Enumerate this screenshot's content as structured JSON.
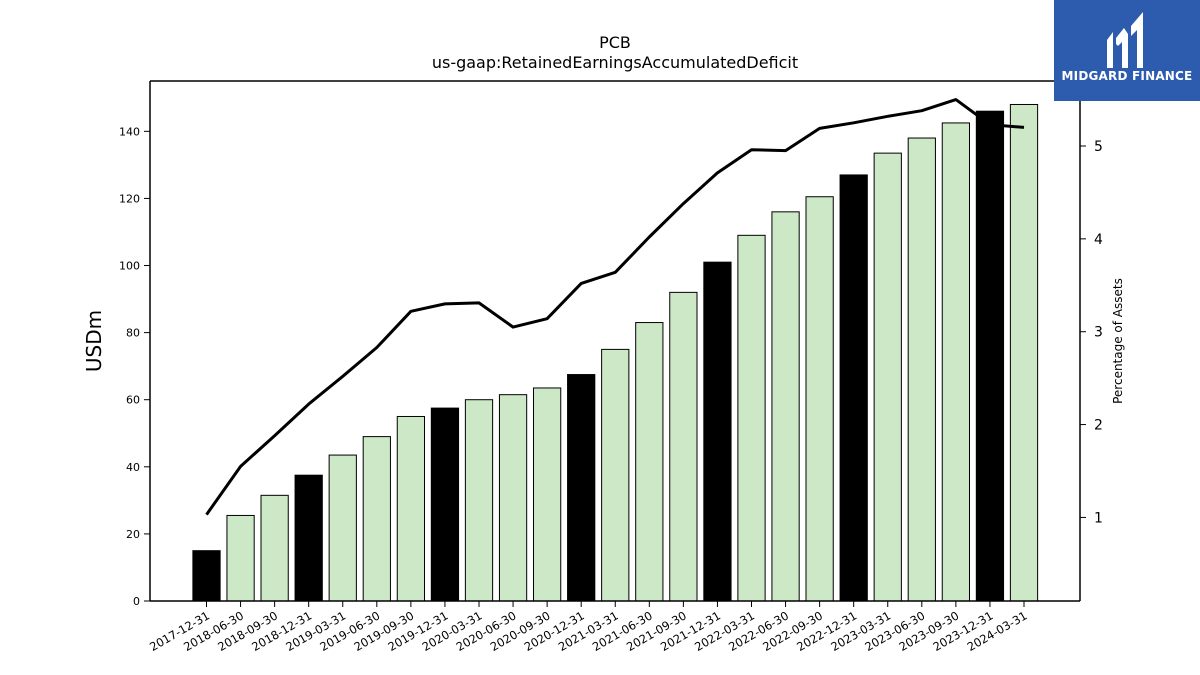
{
  "chart_data": {
    "type": "bar",
    "title": "PCB",
    "subtitle": "us-gaap:RetainedEarningsAccumulatedDeficit",
    "ylabel": "USDm",
    "y2label": "Percentage of Assets",
    "ylim": [
      0,
      155
    ],
    "y2lim": [
      0.1,
      5.7
    ],
    "yticks": [
      0,
      20,
      40,
      60,
      80,
      100,
      120,
      140
    ],
    "y2ticks": [
      1,
      2,
      3,
      4,
      5
    ],
    "categories": [
      "2017-12-31",
      "2018-06-30",
      "2018-09-30",
      "2018-12-31",
      "2019-03-31",
      "2019-06-30",
      "2019-09-30",
      "2019-12-31",
      "2020-03-31",
      "2020-06-30",
      "2020-09-30",
      "2020-12-31",
      "2021-03-31",
      "2021-06-30",
      "2021-09-30",
      "2021-12-31",
      "2022-03-31",
      "2022-06-30",
      "2022-09-30",
      "2022-12-31",
      "2023-03-31",
      "2023-06-30",
      "2023-09-30",
      "2023-12-31",
      "2024-03-31"
    ],
    "series": [
      {
        "type": "bar",
        "values": [
          15,
          25.5,
          31.5,
          37.5,
          43.5,
          49,
          55,
          57.5,
          60,
          61.5,
          63.5,
          67.5,
          75,
          83,
          92,
          101,
          109,
          116,
          120.5,
          127,
          133.5,
          138,
          142.5,
          146,
          148
        ],
        "highlight": [
          true,
          false,
          false,
          true,
          false,
          false,
          false,
          true,
          false,
          false,
          false,
          true,
          false,
          false,
          false,
          true,
          false,
          false,
          false,
          true,
          false,
          false,
          false,
          true,
          false
        ]
      },
      {
        "type": "line",
        "axis": "right",
        "values": [
          1.03,
          1.55,
          1.88,
          2.22,
          2.52,
          2.83,
          3.22,
          3.3,
          3.31,
          3.05,
          3.14,
          3.52,
          3.64,
          4.02,
          4.38,
          4.71,
          4.96,
          4.95,
          5.19,
          5.25,
          5.32,
          5.38,
          5.5,
          5.23,
          5.2
        ]
      }
    ],
    "colors": {
      "bar": "#cce8c6",
      "bar_highlight": "#000000",
      "line": "#000000"
    }
  },
  "logo": {
    "text": "MIDGARD FINANCE"
  }
}
